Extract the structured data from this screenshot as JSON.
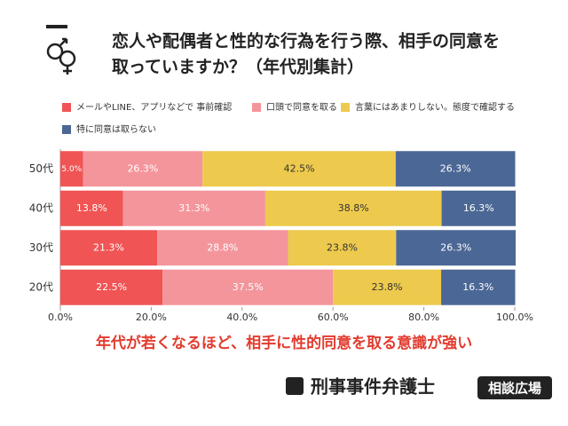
{
  "chart_data": {
    "type": "stacked-bar-horizontal",
    "title_lines": [
      "恋人や配偶者と性的な行為を行う際、相手の同意を",
      "取っていますか？（年代別集計）"
    ],
    "categories": [
      "50代",
      "40代",
      "30代",
      "20代"
    ],
    "series": [
      {
        "name": "メールやLINE、アプリなどで 事前確認",
        "color": "#f05454",
        "values": [
          5.0,
          13.8,
          21.3,
          22.5
        ],
        "value_labels": [
          "5.0%",
          "13.8%",
          "21.3%",
          "22.5%"
        ]
      },
      {
        "name": "口頭で同意を取る",
        "color": "#f4959c",
        "values": [
          26.3,
          31.3,
          28.8,
          37.5
        ],
        "value_labels": [
          "26.3%",
          "31.3%",
          "28.8%",
          "37.5%"
        ]
      },
      {
        "name": "言葉にはあまりしない。態度で確認する",
        "color": "#edca4d",
        "values": [
          42.5,
          38.8,
          23.8,
          23.8
        ],
        "value_labels": [
          "42.5%",
          "38.8%",
          "23.8%",
          "23.8%"
        ]
      },
      {
        "name": "特に同意は取らない",
        "color": "#4b6795",
        "values": [
          26.3,
          16.3,
          26.3,
          16.3
        ],
        "value_labels": [
          "26.3%",
          "16.3%",
          "26.3%",
          "16.3%"
        ]
      }
    ],
    "xlim": [
      0,
      100
    ],
    "xticks": [
      {
        "value": 0,
        "label": "0.0%"
      },
      {
        "value": 20,
        "label": "20.0%"
      },
      {
        "value": 40,
        "label": "40.0%"
      },
      {
        "value": 60,
        "label": "60.0%"
      },
      {
        "value": 80,
        "label": "80.0%"
      },
      {
        "value": 100,
        "label": "100.0%"
      }
    ],
    "annotation": "年代が若くなるほど、相手に性的同意を取る意識が強い",
    "footer": {
      "brand": "刑事事件弁護士",
      "badge": "相談広場"
    }
  }
}
